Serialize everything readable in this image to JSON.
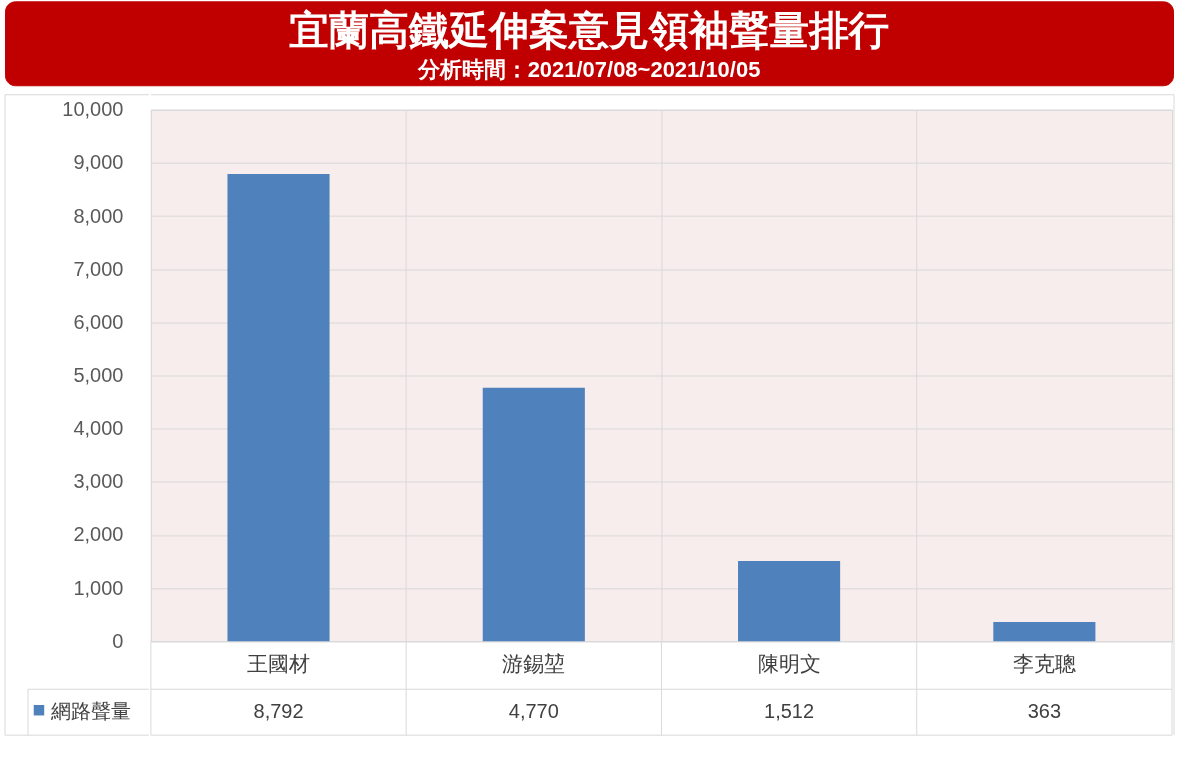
{
  "chart_data": {
    "type": "bar",
    "title": "宜蘭高鐵延伸案意見領袖聲量排行",
    "subtitle": "分析時間：2021/07/08~2021/10/05",
    "categories": [
      "王國材",
      "游錫堃",
      "陳明文",
      "李克聰"
    ],
    "series": [
      {
        "name": "網路聲量",
        "color": "#4f81bd",
        "values": [
          8792,
          4770,
          1512,
          363
        ],
        "value_labels": [
          "8,792",
          "4,770",
          "1,512",
          "363"
        ]
      }
    ],
    "ylim": [
      0,
      10000
    ],
    "yticks": [
      0,
      {
        "value": 1000,
        "label": "1,000"
      },
      {
        "value": 2000,
        "label": "2,000"
      },
      {
        "value": 3000,
        "label": "3,000"
      },
      {
        "value": 4000,
        "label": "4,000"
      },
      {
        "value": 5000,
        "label": "5,000"
      },
      {
        "value": 6000,
        "label": "6,000"
      },
      {
        "value": 7000,
        "label": "7,000"
      },
      {
        "value": 8000,
        "label": "8,000"
      },
      {
        "value": 9000,
        "label": "9,000"
      },
      {
        "value": 10000,
        "label": "10,000"
      }
    ],
    "grid": true,
    "legend": "bottom left"
  }
}
